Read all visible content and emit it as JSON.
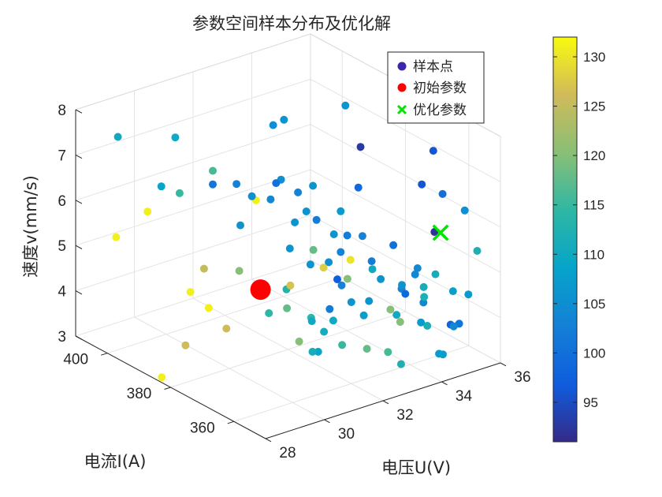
{
  "chart_data": {
    "type": "scatter3d",
    "title": "参数空间样本分布及优化解",
    "xlabel": "电压U(V)",
    "ylabel": "电流I(A)",
    "zlabel": "速度v(mm/s)",
    "xlim": [
      28,
      36
    ],
    "ylim": [
      350,
      410
    ],
    "zlim": [
      3,
      8
    ],
    "xticks": [
      "28",
      "30",
      "32",
      "34",
      "36"
    ],
    "yticks": [
      "360",
      "380",
      "400"
    ],
    "zticks": [
      "3",
      "4",
      "5",
      "6",
      "7",
      "8"
    ],
    "grid": true,
    "legend": {
      "placement": "top-right",
      "entries": [
        {
          "label": "样本点",
          "marker": "circle",
          "color": "#3e26a8"
        },
        {
          "label": "初始参数",
          "marker": "circle",
          "color": "#ff0000"
        },
        {
          "label": "优化参数",
          "marker": "x",
          "color": "#00e600"
        }
      ]
    },
    "colorbar": {
      "colormap": "parula",
      "range": [
        91,
        132
      ],
      "ticks": [
        "95",
        "100",
        "105",
        "110",
        "115",
        "120",
        "125",
        "130"
      ]
    },
    "initial": {
      "x": 30.2,
      "y": 372,
      "z": 5.0
    },
    "optimal": {
      "x": 34.5,
      "y": 355,
      "z": 6.0
    },
    "series": [
      {
        "values": [
          [
            28.3,
            400,
            5.5,
            131
          ],
          [
            28.9,
            405,
            7.4,
            110
          ],
          [
            29.3,
            395,
            6.6,
            109
          ],
          [
            30.1,
            398,
            7.4,
            110
          ],
          [
            29.6,
            392,
            6.5,
            115
          ],
          [
            30.3,
            388,
            7.0,
            116
          ],
          [
            29.8,
            404,
            5.6,
            131
          ],
          [
            30.0,
            388,
            4.9,
            125
          ],
          [
            30.4,
            396,
            4.0,
            131
          ],
          [
            29.1,
            393,
            2.5,
            131
          ],
          [
            29.8,
            392,
            3.1,
            126
          ],
          [
            29.9,
            380,
            3.9,
            126
          ],
          [
            30.7,
            393,
            3.7,
            131
          ],
          [
            31.3,
            374,
            4.7,
            113
          ],
          [
            31.2,
            388,
            4.6,
            120
          ],
          [
            31.1,
            372,
            4.4,
            118
          ],
          [
            31.3,
            370,
            3.7,
            120
          ],
          [
            32.4,
            364,
            5.5,
            130
          ],
          [
            31.7,
            366,
            5.4,
            128
          ],
          [
            32.3,
            364,
            5.1,
            120
          ],
          [
            31.0,
            370,
            5.0,
            127
          ],
          [
            32.2,
            392,
            5.8,
            131
          ],
          [
            32.0,
            372,
            5.5,
            118
          ],
          [
            31.9,
            362,
            3.8,
            115
          ],
          [
            32.1,
            356,
            3.9,
            118
          ],
          [
            32.9,
            356,
            4.6,
            120
          ],
          [
            32.6,
            354,
            3.8,
            116
          ],
          [
            32.8,
            352,
            4.5,
            120
          ],
          [
            31.6,
            381,
            8.0,
            105
          ],
          [
            32.3,
            385,
            6.5,
            105
          ],
          [
            32.4,
            385,
            7.8,
            106
          ],
          [
            32.2,
            374,
            6.8,
            106
          ],
          [
            31.8,
            375,
            6.7,
            103
          ],
          [
            32.0,
            371,
            6.2,
            102
          ],
          [
            31.2,
            384,
            6.4,
            105
          ],
          [
            31.8,
            376,
            6.0,
            106
          ],
          [
            32.5,
            368,
            6.4,
            107
          ],
          [
            33.2,
            373,
            8.4,
            106
          ],
          [
            32.4,
            365,
            6.0,
            102
          ],
          [
            32.7,
            363,
            6.0,
            103
          ],
          [
            32.5,
            368,
            5.5,
            103
          ],
          [
            33.1,
            368,
            6.8,
            99
          ],
          [
            33.5,
            371,
            7.5,
            93
          ],
          [
            33.0,
            356,
            6.0,
            100
          ],
          [
            33.2,
            351,
            5.5,
            104
          ],
          [
            33.5,
            353,
            5.5,
            104
          ],
          [
            32.6,
            370,
            4.8,
            97
          ],
          [
            32.6,
            360,
            4.7,
            106
          ],
          [
            33.0,
            355,
            4.5,
            110
          ],
          [
            33.4,
            351,
            4.4,
            107
          ],
          [
            33.7,
            353,
            4.7,
            104
          ],
          [
            34.4,
            360,
            6.9,
            96
          ],
          [
            34.9,
            361,
            7.5,
            96
          ],
          [
            35.0,
            359,
            6.6,
            100
          ],
          [
            34.4,
            356,
            6.0,
            92
          ],
          [
            35.0,
            352,
            6.5,
            105
          ],
          [
            35.1,
            349,
            5.7,
            112
          ],
          [
            34.6,
            352,
            4.8,
            108
          ],
          [
            34.0,
            352,
            5.3,
            111
          ],
          [
            33.6,
            352,
            5.1,
            111
          ],
          [
            32.8,
            361,
            5.5,
            102
          ],
          [
            33.0,
            360,
            5.1,
            106
          ],
          [
            33.4,
            357,
            5.0,
            106
          ],
          [
            33.6,
            359,
            4.8,
            103
          ],
          [
            34.8,
            349,
            4.8,
            107
          ],
          [
            33.4,
            349,
            4.4,
            112
          ],
          [
            34.7,
            351,
            4.1,
            101
          ],
          [
            33.8,
            349,
            3.7,
            107
          ],
          [
            34.3,
            350,
            4.2,
            98
          ],
          [
            33.3,
            355,
            4.9,
            99
          ],
          [
            30.3,
            388,
            6.7,
            101
          ],
          [
            31.0,
            387,
            6.6,
            103
          ],
          [
            31.7,
            381,
            6.7,
            100
          ],
          [
            31.3,
            379,
            6.5,
            104
          ],
          [
            32.3,
            377,
            6.1,
            106
          ],
          [
            32.7,
            372,
            5.7,
            106
          ],
          [
            30.7,
            383,
            5.9,
            106
          ],
          [
            31.9,
            372,
            5.2,
            106
          ],
          [
            31.2,
            372,
            5.7,
            106
          ],
          [
            32.2,
            369,
            5.3,
            105
          ],
          [
            32.1,
            364,
            5.0,
            103
          ],
          [
            32.0,
            360,
            4.8,
            106
          ],
          [
            32.1,
            357,
            4.6,
            108
          ],
          [
            31.8,
            365,
            4.5,
            102
          ],
          [
            31.6,
            362,
            4.4,
            110
          ],
          [
            31.5,
            364,
            4.1,
            111
          ],
          [
            31.3,
            366,
            4.3,
            110
          ],
          [
            31.6,
            369,
            4.2,
            114
          ],
          [
            30.7,
            374,
            4.3,
            114
          ],
          [
            31.3,
            364,
            3.7,
            109
          ],
          [
            31.0,
            363,
            3.8,
            111
          ],
          [
            32.4,
            348,
            3.8,
            112
          ],
          [
            33.5,
            345,
            3.9,
            108
          ],
          [
            34.3,
            349,
            4.2,
            104
          ],
          [
            33.4,
            350,
            5.0,
            112
          ],
          [
            32.5,
            358,
            5.5,
            110
          ]
        ]
      }
    ]
  }
}
